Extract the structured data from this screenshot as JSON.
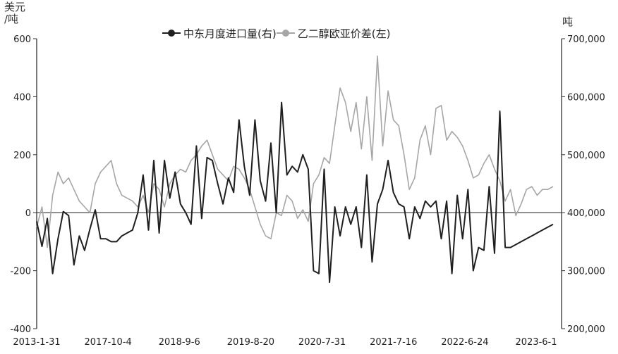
{
  "chart_data": {
    "type": "line",
    "left_unit": "美元\n/吨",
    "right_unit": "吨",
    "legend_position": "top-center",
    "grid": false,
    "x_tick_labels": [
      "2013-1-31",
      "2017-10-4",
      "2018-9-6",
      "2019-8-20",
      "2020-7-31",
      "2021-7-16",
      "2022-6-24",
      "2023-6-1"
    ],
    "y_left": {
      "range": [
        -400,
        600
      ],
      "ticks": [
        "-400",
        "-200",
        "0",
        "200",
        "400",
        "600"
      ]
    },
    "y_right": {
      "range": [
        200000,
        700000
      ],
      "ticks": [
        "200,000",
        "300,000",
        "400,000",
        "500,000",
        "600,000",
        "700,000"
      ]
    },
    "series": [
      {
        "name": "中东月度进口量(右)",
        "axis": "right",
        "color": "#1f1f1f",
        "x": [
          "2013-1",
          "2013-3",
          "2013-5",
          "2013-7",
          "2013-9",
          "2013-11",
          "2014-1",
          "2014-3",
          "2014-5",
          "2014-7",
          "2014-9",
          "2014-11",
          "2015-1",
          "2015-3",
          "2015-5",
          "2015-7",
          "2015-9",
          "2015-11",
          "2016-1",
          "2016-3",
          "2016-5",
          "2016-7",
          "2016-9",
          "2016-11",
          "2017-4",
          "2017-6",
          "2017-8",
          "2017-10",
          "2017-11",
          "2017-12",
          "2018-1",
          "2018-2",
          "2018-3",
          "2018-4",
          "2018-5",
          "2018-6",
          "2018-7",
          "2018-8",
          "2018-9",
          "2018-10",
          "2018-11",
          "2018-12",
          "2019-1",
          "2019-2",
          "2019-3",
          "2019-4",
          "2019-5",
          "2019-6",
          "2019-7",
          "2019-8",
          "2019-9",
          "2019-10",
          "2019-11",
          "2019-12",
          "2020-1",
          "2020-2",
          "2020-3",
          "2020-4",
          "2020-5",
          "2020-6",
          "2020-7",
          "2020-8",
          "2020-9",
          "2020-10",
          "2020-11",
          "2020-12",
          "2021-1",
          "2021-2",
          "2021-3",
          "2021-4",
          "2021-5",
          "2021-6",
          "2021-7",
          "2021-8",
          "2021-9",
          "2021-10",
          "2021-11",
          "2021-12",
          "2022-1",
          "2022-2",
          "2022-3",
          "2022-4",
          "2022-5",
          "2022-6",
          "2022-7",
          "2022-8",
          "2022-9",
          "2022-10",
          "2022-11",
          "2022-12",
          "2023-1",
          "2023-2",
          "2023-3",
          "2023-4",
          "2023-5",
          "2023-6",
          "2023-7",
          "2023-8"
        ],
        "values": [
          385000,
          342000,
          390000,
          295000,
          355000,
          402000,
          395000,
          310000,
          360000,
          335000,
          372000,
          405000,
          355000,
          355000,
          350000,
          350000,
          360000,
          365000,
          370000,
          400000,
          465000,
          370000,
          490000,
          365000,
          490000,
          425000,
          470000,
          415000,
          400000,
          380000,
          515000,
          390000,
          495000,
          490000,
          450000,
          415000,
          460000,
          435000,
          560000,
          480000,
          430000,
          560000,
          455000,
          420000,
          520000,
          400000,
          590000,
          465000,
          480000,
          470000,
          500000,
          475000,
          300000,
          295000,
          475000,
          280000,
          410000,
          360000,
          410000,
          380000,
          410000,
          340000,
          465000,
          315000,
          415000,
          440000,
          490000,
          435000,
          415000,
          410000,
          355000,
          410000,
          390000,
          420000,
          410000,
          420000,
          355000,
          420000,
          295000,
          430000,
          355000,
          440000,
          300000,
          340000,
          335000,
          445000,
          330000,
          575000,
          340000,
          340000,
          345000,
          350000,
          355000,
          360000,
          365000,
          370000,
          375000,
          380000
        ]
      },
      {
        "name": "乙二醇欧亚价差(左)",
        "axis": "left",
        "color": "#a6a6a6",
        "x": [
          "2013-1",
          "2013-3",
          "2013-5",
          "2013-7",
          "2013-9",
          "2013-11",
          "2014-1",
          "2014-3",
          "2014-5",
          "2014-7",
          "2014-9",
          "2014-11",
          "2015-1",
          "2015-3",
          "2015-5",
          "2015-7",
          "2015-9",
          "2015-11",
          "2016-1",
          "2016-3",
          "2016-5",
          "2016-7",
          "2016-9",
          "2016-11",
          "2017-4",
          "2017-6",
          "2017-8",
          "2017-10",
          "2017-11",
          "2017-12",
          "2018-1",
          "2018-2",
          "2018-3",
          "2018-4",
          "2018-5",
          "2018-6",
          "2018-7",
          "2018-8",
          "2018-9",
          "2018-10",
          "2018-11",
          "2018-12",
          "2019-1",
          "2019-2",
          "2019-3",
          "2019-4",
          "2019-5",
          "2019-6",
          "2019-7",
          "2019-8",
          "2019-9",
          "2019-10",
          "2019-11",
          "2019-12",
          "2020-1",
          "2020-2",
          "2020-3",
          "2020-4",
          "2020-5",
          "2020-6",
          "2020-7",
          "2020-8",
          "2020-9",
          "2020-10",
          "2020-11",
          "2020-12",
          "2021-1",
          "2021-2",
          "2021-3",
          "2021-4",
          "2021-5",
          "2021-6",
          "2021-7",
          "2021-8",
          "2021-9",
          "2021-10",
          "2021-11",
          "2021-12",
          "2022-1",
          "2022-2",
          "2022-3",
          "2022-4",
          "2022-5",
          "2022-6",
          "2022-7",
          "2022-8",
          "2022-9",
          "2022-10",
          "2022-11",
          "2022-12",
          "2023-1",
          "2023-2",
          "2023-3",
          "2023-4",
          "2023-5",
          "2023-6",
          "2023-7",
          "2023-8"
        ],
        "values": [
          -50,
          20,
          -120,
          60,
          140,
          100,
          120,
          80,
          40,
          20,
          0,
          100,
          140,
          160,
          180,
          100,
          60,
          50,
          40,
          20,
          60,
          0,
          100,
          80,
          20,
          100,
          130,
          150,
          140,
          180,
          200,
          230,
          250,
          200,
          150,
          130,
          110,
          160,
          150,
          120,
          80,
          20,
          -40,
          -80,
          -90,
          0,
          -10,
          60,
          40,
          -20,
          10,
          -30,
          100,
          130,
          190,
          170,
          300,
          430,
          380,
          280,
          380,
          220,
          400,
          180,
          540,
          230,
          420,
          320,
          300,
          200,
          80,
          120,
          250,
          300,
          200,
          360,
          370,
          250,
          280,
          260,
          230,
          180,
          120,
          130,
          170,
          200,
          150,
          110,
          40,
          80,
          -10,
          30,
          80,
          90,
          60,
          80,
          80,
          90
        ]
      }
    ]
  }
}
